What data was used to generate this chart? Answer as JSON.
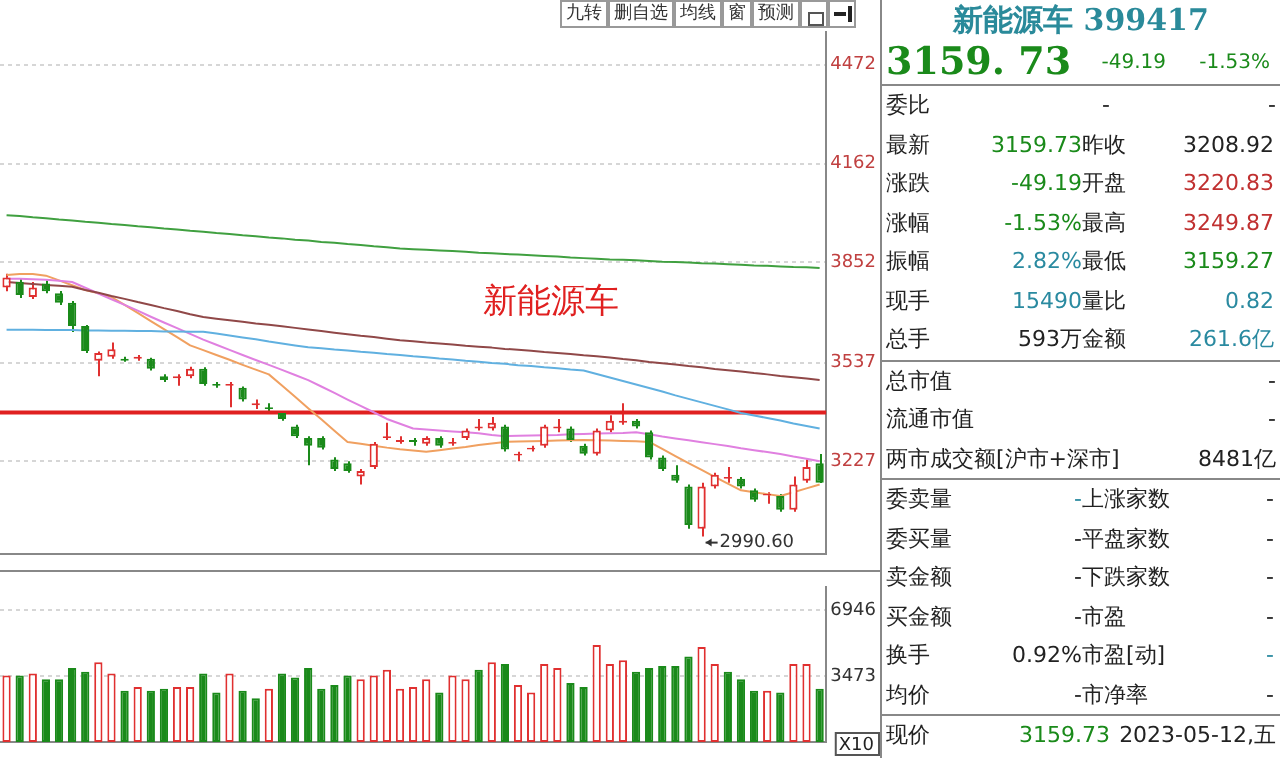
{
  "chart_data": [
    {
      "type": "candlestick",
      "title": "新能源车",
      "categories": [
        null,
        null,
        null,
        null,
        null,
        null,
        null,
        null,
        null,
        null,
        null,
        null,
        null,
        null,
        null,
        null,
        null,
        null,
        null,
        null,
        null,
        null,
        null,
        null,
        null,
        null,
        null,
        null,
        null,
        null,
        null,
        null,
        null,
        null,
        null,
        null,
        null,
        null,
        null,
        null,
        null,
        null,
        null,
        null,
        null,
        null,
        null,
        null,
        null,
        null,
        null,
        null,
        null,
        null,
        null,
        null,
        null,
        null,
        null,
        null,
        null,
        null,
        null
      ],
      "ohlc": [
        [
          3773,
          3816,
          3761,
          3804
        ],
        [
          3791,
          3800,
          3740,
          3749
        ],
        [
          3743,
          3790,
          3737,
          3773
        ],
        [
          3785,
          3795,
          3755,
          3761
        ],
        [
          3755,
          3762,
          3718,
          3725
        ],
        [
          3725,
          3730,
          3633,
          3652
        ],
        [
          3652,
          3655,
          3567,
          3573
        ],
        [
          3543,
          3572,
          3494,
          3567
        ],
        [
          3555,
          3600,
          3549,
          3579
        ],
        [
          3549,
          3555,
          3540,
          3543
        ],
        [
          3549,
          3561,
          3543,
          3555
        ],
        [
          3549,
          3552,
          3512,
          3518
        ],
        [
          3494,
          3500,
          3476,
          3482
        ],
        [
          3488,
          3500,
          3464,
          3494
        ],
        [
          3494,
          3524,
          3488,
          3518
        ],
        [
          3518,
          3522,
          3464,
          3470
        ],
        [
          3470,
          3476,
          3458,
          3464
        ],
        [
          3464,
          3476,
          3397,
          3470
        ],
        [
          3458,
          3462,
          3415,
          3421
        ],
        [
          3403,
          3421,
          3391,
          3409
        ],
        [
          3397,
          3409,
          3385,
          3391
        ],
        [
          3379,
          3385,
          3354,
          3360
        ],
        [
          3336,
          3342,
          3300,
          3306
        ],
        [
          3300,
          3306,
          3215,
          3276
        ],
        [
          3300,
          3306,
          3264,
          3270
        ],
        [
          3233,
          3240,
          3197,
          3203
        ],
        [
          3221,
          3227,
          3191,
          3197
        ],
        [
          3179,
          3203,
          3154,
          3197
        ],
        [
          3209,
          3288,
          3203,
          3282
        ],
        [
          3300,
          3348,
          3294,
          3306
        ],
        [
          3288,
          3306,
          3282,
          3294
        ],
        [
          3294,
          3300,
          3276,
          3288
        ],
        [
          3282,
          3306,
          3276,
          3300
        ],
        [
          3300,
          3306,
          3270,
          3276
        ],
        [
          3282,
          3300,
          3276,
          3288
        ],
        [
          3300,
          3330,
          3294,
          3324
        ],
        [
          3330,
          3360,
          3324,
          3336
        ],
        [
          3330,
          3366,
          3324,
          3348
        ],
        [
          3336,
          3342,
          3258,
          3264
        ],
        [
          3245,
          3257,
          3227,
          3251
        ],
        [
          3264,
          3276,
          3258,
          3270
        ],
        [
          3276,
          3342,
          3270,
          3336
        ],
        [
          3330,
          3360,
          3318,
          3336
        ],
        [
          3330,
          3336,
          3288,
          3294
        ],
        [
          3276,
          3282,
          3245,
          3251
        ],
        [
          3251,
          3330,
          3245,
          3324
        ],
        [
          3324,
          3372,
          3318,
          3354
        ],
        [
          3348,
          3409,
          3342,
          3354
        ],
        [
          3354,
          3360,
          3330,
          3336
        ],
        [
          3318,
          3324,
          3233,
          3239
        ],
        [
          3239,
          3245,
          3197,
          3203
        ],
        [
          3185,
          3215,
          3160,
          3166
        ],
        [
          3148,
          3154,
          3015,
          3027
        ],
        [
          3015,
          3160,
          2990.6,
          3148
        ],
        [
          3148,
          3191,
          3142,
          3185
        ],
        [
          3172,
          3209,
          3160,
          3178
        ],
        [
          3172,
          3178,
          3142,
          3148
        ],
        [
          3136,
          3142,
          3100,
          3106
        ],
        [
          3120,
          3130,
          3094,
          3124
        ],
        [
          3118,
          3124,
          3069,
          3075
        ],
        [
          3075,
          3179,
          3069,
          3154
        ],
        [
          3166,
          3233,
          3160,
          3208.92
        ],
        [
          3220.83,
          3249.87,
          3159.27,
          3159.73
        ]
      ],
      "colors": [
        "#e03030",
        "#1a8a1a",
        "#e03030",
        "#1a8a1a",
        "#1a8a1a",
        "#1a8a1a",
        "#1a8a1a",
        "#e03030",
        "#e03030",
        "#1a8a1a",
        "#e03030",
        "#1a8a1a",
        "#1a8a1a",
        "#e03030",
        "#e03030",
        "#1a8a1a",
        "#1a8a1a",
        "#e03030",
        "#1a8a1a",
        "#e03030",
        "#1a8a1a",
        "#1a8a1a",
        "#1a8a1a",
        "#1a8a1a",
        "#1a8a1a",
        "#1a8a1a",
        "#1a8a1a",
        "#e03030",
        "#e03030",
        "#e03030",
        "#e03030",
        "#1a8a1a",
        "#e03030",
        "#1a8a1a",
        "#e03030",
        "#e03030",
        "#e03030",
        "#e03030",
        "#1a8a1a",
        "#e03030",
        "#e03030",
        "#e03030",
        "#e03030",
        "#1a8a1a",
        "#1a8a1a",
        "#e03030",
        "#e03030",
        "#e03030",
        "#1a8a1a",
        "#1a8a1a",
        "#1a8a1a",
        "#1a8a1a",
        "#1a8a1a",
        "#e03030",
        "#e03030",
        "#e03030",
        "#1a8a1a",
        "#1a8a1a",
        "#e03030",
        "#1a8a1a",
        "#e03030",
        "#e03030",
        "#1a8a1a"
      ],
      "series": [
        {
          "type": "line",
          "color": "#40a040",
          "values": [
            4000,
            3997,
            3993,
            3990,
            3986,
            3983,
            3979,
            3976,
            3972,
            3969,
            3965,
            3962,
            3958,
            3955,
            3951,
            3948,
            3944,
            3941,
            3937,
            3934,
            3930,
            3927,
            3923,
            3920,
            3916,
            3913,
            3909,
            3906,
            3902,
            3899,
            3895,
            3893,
            3891,
            3889,
            3887,
            3885,
            3882,
            3880,
            3878,
            3876,
            3874,
            3872,
            3870,
            3867,
            3865,
            3863,
            3861,
            3860,
            3858,
            3856,
            3854,
            3853,
            3851,
            3849,
            3848,
            3846,
            3844,
            3842,
            3841,
            3839,
            3837,
            3836,
            3834
          ]
        },
        {
          "type": "line",
          "color": "#904848",
          "values": [
            3790,
            3787,
            3784,
            3781,
            3778,
            3775,
            3765,
            3756,
            3746,
            3737,
            3727,
            3718,
            3708,
            3699,
            3689,
            3680,
            3675,
            3670,
            3665,
            3660,
            3656,
            3651,
            3646,
            3641,
            3636,
            3631,
            3626,
            3621,
            3617,
            3612,
            3607,
            3604,
            3600,
            3597,
            3594,
            3590,
            3587,
            3584,
            3580,
            3577,
            3574,
            3570,
            3567,
            3564,
            3560,
            3557,
            3553,
            3548,
            3544,
            3539,
            3535,
            3531,
            3526,
            3522,
            3517,
            3513,
            3509,
            3504,
            3500,
            3495,
            3491,
            3487,
            3482
          ]
        },
        {
          "type": "line",
          "color": "#60b0e0",
          "values": [
            3640,
            3640,
            3640,
            3639,
            3639,
            3639,
            3638,
            3638,
            3637,
            3637,
            3636,
            3636,
            3635,
            3635,
            3634,
            3634,
            3628,
            3622,
            3616,
            3610,
            3603,
            3597,
            3591,
            3585,
            3582,
            3578,
            3575,
            3571,
            3568,
            3564,
            3561,
            3557,
            3554,
            3550,
            3547,
            3543,
            3540,
            3536,
            3533,
            3529,
            3526,
            3522,
            3519,
            3515,
            3512,
            3501,
            3490,
            3479,
            3468,
            3457,
            3446,
            3434,
            3423,
            3412,
            3401,
            3390,
            3379,
            3371,
            3363,
            3355,
            3346,
            3338,
            3330
          ]
        },
        {
          "type": "line",
          "color": "#e080e0",
          "values": [
            3800,
            3800,
            3799,
            3797,
            3794,
            3790,
            3772,
            3754,
            3736,
            3718,
            3700,
            3681,
            3663,
            3645,
            3627,
            3609,
            3593,
            3577,
            3561,
            3545,
            3530,
            3514,
            3498,
            3482,
            3462,
            3442,
            3421,
            3401,
            3381,
            3360,
            3345,
            3330,
            3327,
            3324,
            3321,
            3318,
            3315,
            3310,
            3306,
            3307,
            3308,
            3309,
            3310,
            3312,
            3313,
            3314,
            3315,
            3316,
            3318,
            3312,
            3305,
            3299,
            3293,
            3287,
            3281,
            3275,
            3268,
            3262,
            3256,
            3250,
            3242,
            3235,
            3227
          ]
        },
        {
          "type": "line",
          "color": "#f0a060",
          "values": [
            3812,
            3815,
            3815,
            3810,
            3795,
            3780,
            3765,
            3755,
            3743,
            3718,
            3693,
            3667,
            3642,
            3617,
            3591,
            3576,
            3561,
            3546,
            3530,
            3515,
            3500,
            3465,
            3430,
            3394,
            3359,
            3323,
            3288,
            3282,
            3276,
            3270,
            3265,
            3261,
            3257,
            3262,
            3267,
            3272,
            3278,
            3283,
            3288,
            3289,
            3290,
            3291,
            3292,
            3293,
            3294,
            3293,
            3292,
            3291,
            3290,
            3288,
            3266,
            3243,
            3221,
            3200,
            3178,
            3157,
            3136,
            3130,
            3124,
            3118,
            3130,
            3142,
            3154
          ]
        }
      ],
      "ylim": [
        2936,
        4575
      ],
      "yticks": [
        3227,
        3537,
        3852,
        4162,
        4472
      ],
      "grid": "y",
      "tick_labels": "y",
      "ref_lines": [
        {
          "axis": "y",
          "value": 3380,
          "color": "#e02020"
        }
      ],
      "annotations": [
        "九转",
        "删自选",
        "均线",
        "窗",
        "预测",
        "2990.60"
      ]
    },
    {
      "type": "bar",
      "stacked": true,
      "categories": [
        null,
        null,
        null,
        null,
        null,
        null,
        null,
        null,
        null,
        null,
        null,
        null,
        null,
        null,
        null,
        null,
        null,
        null,
        null,
        null,
        null,
        null,
        null,
        null,
        null,
        null,
        null,
        null,
        null,
        null,
        null,
        null,
        null,
        null,
        null,
        null,
        null,
        null,
        null,
        null,
        null,
        null,
        null,
        null,
        null,
        null,
        null,
        null,
        null,
        null,
        null,
        null,
        null,
        null,
        null,
        null,
        null,
        null,
        null,
        null,
        null,
        null,
        null
      ],
      "series": [
        {
          "color": "#e03030",
          "values": [
            3500,
            null,
            3600,
            null,
            null,
            null,
            null,
            4200,
            3600,
            null,
            2900,
            null,
            null,
            2900,
            2900,
            null,
            null,
            3600,
            null,
            null,
            2800,
            null,
            null,
            null,
            null,
            null,
            null,
            3300,
            3500,
            3800,
            2800,
            2900,
            3300,
            null,
            3500,
            3300,
            null,
            4200,
            null,
            3000,
            2600,
            4100,
            3900,
            null,
            null,
            5100,
            4100,
            4300,
            null,
            null,
            null,
            null,
            null,
            5000,
            4100,
            null,
            null,
            null,
            2700,
            null,
            4100,
            4100,
            null
          ]
        },
        {
          "color": "#1a8a1a",
          "values": [
            null,
            3500,
            null,
            3300,
            3300,
            3900,
            3700,
            null,
            null,
            2700,
            null,
            2700,
            2800,
            null,
            null,
            3600,
            2600,
            null,
            2700,
            2300,
            null,
            3600,
            3400,
            3900,
            2800,
            3000,
            3500,
            null,
            null,
            null,
            null,
            null,
            null,
            2600,
            null,
            null,
            3800,
            null,
            4100,
            null,
            null,
            null,
            null,
            3100,
            2900,
            null,
            null,
            null,
            3700,
            3900,
            4000,
            4000,
            4500,
            null,
            null,
            3700,
            3300,
            2700,
            null,
            2600,
            null,
            null,
            2800
          ]
        }
      ],
      "ylim": [
        0,
        8170
      ],
      "yticks": [
        3473,
        6946
      ],
      "grid": "y",
      "tick_labels": "y",
      "annotations": [
        "X10"
      ]
    },
    {
      "type": "other",
      "title": "新能源车 399417",
      "annotations": [
        "3159. 73",
        "-49.19",
        "-1.53%",
        "委比",
        "-",
        "-",
        "最新",
        "3159.73",
        "昨收",
        "3208.92",
        "涨跌",
        "-49.19",
        "开盘",
        "3220.83",
        "涨幅",
        "-1.53%",
        "最高",
        "3249.87",
        "振幅",
        "2.82%",
        "最低",
        "3159.27",
        "现手",
        "15490",
        "量比",
        "0.82",
        "总手",
        "593万",
        "金额",
        "261.6亿",
        "总市值",
        "-",
        "流通市值",
        "-",
        "两市成交额[沪市+深市]",
        "8481亿",
        "委卖量",
        "-",
        "上涨家数",
        "-",
        "委买量",
        "-",
        "平盘家数",
        "-",
        "卖金额",
        "-",
        "下跌家数",
        "-",
        "买金额",
        "-",
        "市盈",
        "-",
        "换手",
        "0.92%",
        "市盈[动]",
        "-",
        "均价",
        "-",
        "市净率",
        "-",
        "现价",
        "3159.73",
        "2023-05-12,五"
      ]
    }
  ]
}
